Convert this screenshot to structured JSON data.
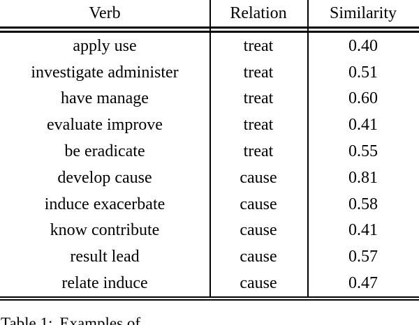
{
  "table": {
    "columns": [
      {
        "label": "Verb"
      },
      {
        "label": "Relation"
      },
      {
        "label": "Similarity"
      }
    ],
    "rows": [
      {
        "verb": "apply use",
        "relation": "treat",
        "similarity": "0.40"
      },
      {
        "verb": "investigate administer",
        "relation": "treat",
        "similarity": "0.51"
      },
      {
        "verb": "have manage",
        "relation": "treat",
        "similarity": "0.60"
      },
      {
        "verb": "evaluate improve",
        "relation": "treat",
        "similarity": "0.41"
      },
      {
        "verb": "be eradicate",
        "relation": "treat",
        "similarity": "0.55"
      },
      {
        "verb": "develop cause",
        "relation": "cause",
        "similarity": "0.81"
      },
      {
        "verb": "induce exacerbate",
        "relation": "cause",
        "similarity": "0.58"
      },
      {
        "verb": "know contribute",
        "relation": "cause",
        "similarity": "0.41"
      },
      {
        "verb": "result lead",
        "relation": "cause",
        "similarity": "0.57"
      },
      {
        "verb": "relate induce",
        "relation": "cause",
        "similarity": "0.47"
      }
    ]
  },
  "caption": {
    "label": "Table 1:",
    "text": "Examples of"
  },
  "colors": {
    "text": "#000000",
    "background": "#ffffff",
    "rule": "#000000"
  }
}
